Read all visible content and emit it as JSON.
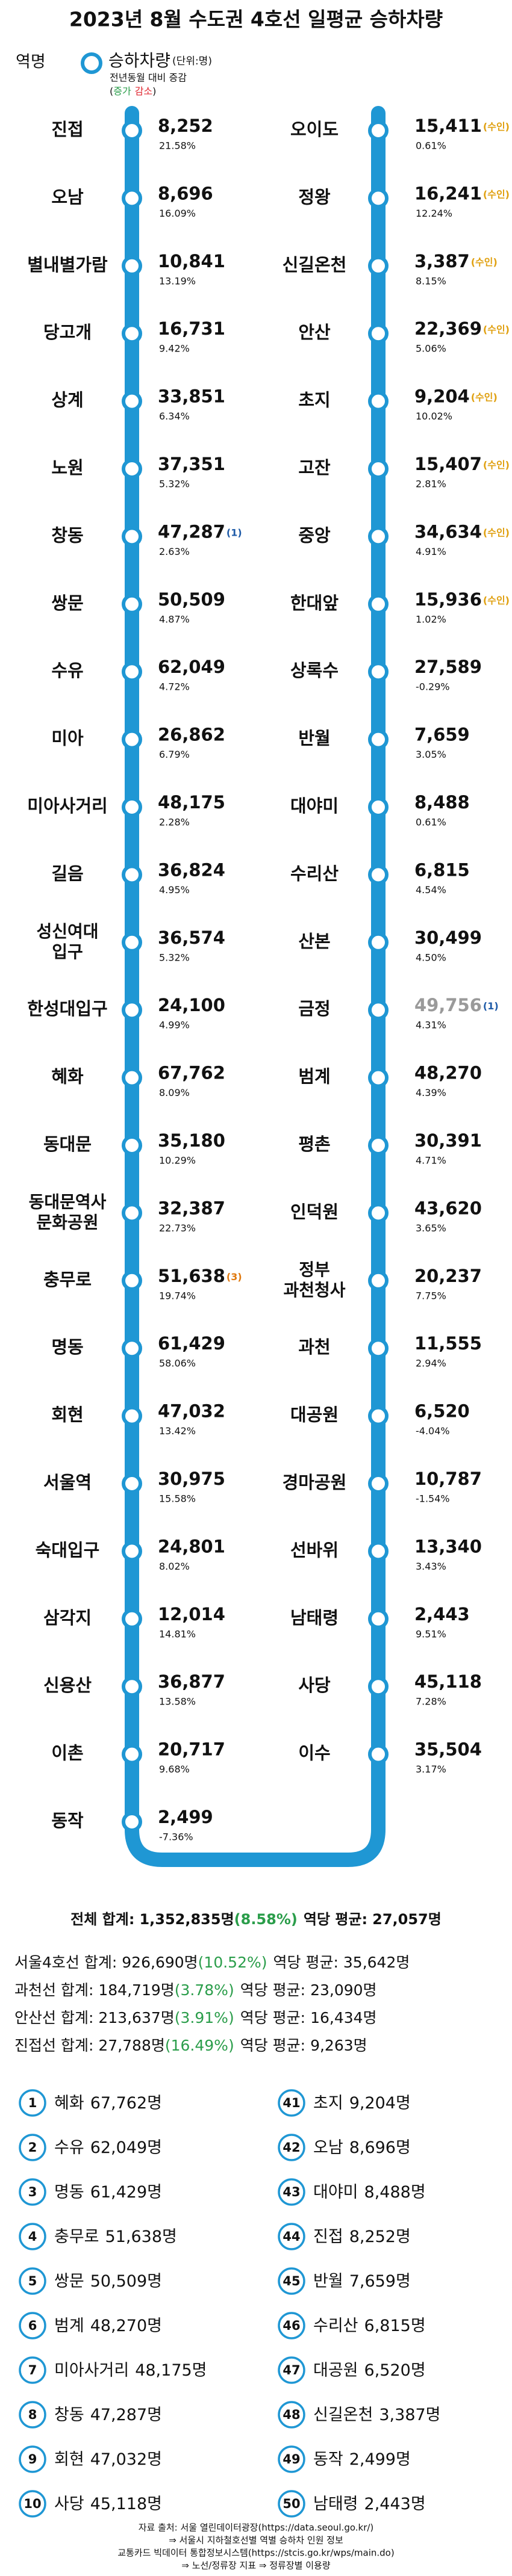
{
  "title": "2023년 8월 수도권 4호선 일평균 승하차량",
  "legend": {
    "station": "역명",
    "riders": "승하차량",
    "unit": "(단위:명)",
    "change": "전년동월 대비 증감",
    "key_open": "(",
    "increase": "증가",
    "decrease": "감소",
    "key_close": ")"
  },
  "colors": {
    "line": "#1f97d4",
    "increase": "#2a9d4a",
    "decrease": "#e0262f",
    "muted": "#9a9a9a"
  },
  "left_stations": [
    {
      "name": "진접",
      "riders": "8,252",
      "change": "21.58%"
    },
    {
      "name": "오남",
      "riders": "8,696",
      "change": "16.09%"
    },
    {
      "name": "별내별가람",
      "riders": "10,841",
      "change": "13.19%"
    },
    {
      "name": "당고개",
      "riders": "16,731",
      "change": "9.42%"
    },
    {
      "name": "상계",
      "riders": "33,851",
      "change": "6.34%"
    },
    {
      "name": "노원",
      "riders": "37,351",
      "change": "5.32%"
    },
    {
      "name": "창동",
      "riders": "47,287",
      "note": "(1)",
      "note_color": "#1f5ba8",
      "change": "2.63%"
    },
    {
      "name": "쌍문",
      "riders": "50,509",
      "change": "4.87%"
    },
    {
      "name": "수유",
      "riders": "62,049",
      "change": "4.72%"
    },
    {
      "name": "미아",
      "riders": "26,862",
      "change": "6.79%"
    },
    {
      "name": "미아사거리",
      "riders": "48,175",
      "change": "2.28%"
    },
    {
      "name": "길음",
      "riders": "36,824",
      "change": "4.95%"
    },
    {
      "name": [
        "성신여대",
        "입구"
      ],
      "riders": "36,574",
      "change": "5.32%"
    },
    {
      "name": "한성대입구",
      "riders": "24,100",
      "change": "4.99%"
    },
    {
      "name": "혜화",
      "riders": "67,762",
      "change": "8.09%"
    },
    {
      "name": "동대문",
      "riders": "35,180",
      "change": "10.29%"
    },
    {
      "name": [
        "동대문역사",
        "문화공원"
      ],
      "riders": "32,387",
      "change": "22.73%"
    },
    {
      "name": "충무로",
      "riders": "51,638",
      "note": "(3)",
      "note_color": "#e07a10",
      "change": "19.74%"
    },
    {
      "name": "명동",
      "riders": "61,429",
      "change": "58.06%"
    },
    {
      "name": "회현",
      "riders": "47,032",
      "change": "13.42%"
    },
    {
      "name": "서울역",
      "riders": "30,975",
      "change": "15.58%"
    },
    {
      "name": "숙대입구",
      "riders": "24,801",
      "change": "8.02%"
    },
    {
      "name": "삼각지",
      "riders": "12,014",
      "change": "14.81%"
    },
    {
      "name": "신용산",
      "riders": "36,877",
      "change": "13.58%"
    },
    {
      "name": "이촌",
      "riders": "20,717",
      "change": "9.68%"
    },
    {
      "name": "동작",
      "riders": "2,499",
      "change": "-7.36%"
    }
  ],
  "right_stations": [
    {
      "name": "오이도",
      "riders": "15,411",
      "note": "(수인)",
      "note_color": "#e0a010",
      "change": "0.61%"
    },
    {
      "name": "정왕",
      "riders": "16,241",
      "note": "(수인)",
      "note_color": "#e0a010",
      "change": "12.24%"
    },
    {
      "name": "신길온천",
      "riders": "3,387",
      "note": "(수인)",
      "note_color": "#e0a010",
      "change": "8.15%"
    },
    {
      "name": "안산",
      "riders": "22,369",
      "note": "(수인)",
      "note_color": "#e0a010",
      "change": "5.06%"
    },
    {
      "name": "초지",
      "riders": "9,204",
      "note": "(수인)",
      "note_color": "#e0a010",
      "change": "10.02%"
    },
    {
      "name": "고잔",
      "riders": "15,407",
      "note": "(수인)",
      "note_color": "#e0a010",
      "change": "2.81%"
    },
    {
      "name": "중앙",
      "riders": "34,634",
      "note": "(수인)",
      "note_color": "#e0a010",
      "change": "4.91%"
    },
    {
      "name": "한대앞",
      "riders": "15,936",
      "note": "(수인)",
      "note_color": "#e0a010",
      "change": "1.02%"
    },
    {
      "name": "상록수",
      "riders": "27,589",
      "change": "-0.29%"
    },
    {
      "name": "반월",
      "riders": "7,659",
      "change": "3.05%"
    },
    {
      "name": "대야미",
      "riders": "8,488",
      "change": "0.61%"
    },
    {
      "name": "수리산",
      "riders": "6,815",
      "change": "4.54%"
    },
    {
      "name": "산본",
      "riders": "30,499",
      "change": "4.50%"
    },
    {
      "name": "금정",
      "riders": "49,756",
      "note": "(1)",
      "note_color": "#1f5ba8",
      "change": "4.31%",
      "muted": true
    },
    {
      "name": "범계",
      "riders": "48,270",
      "change": "4.39%"
    },
    {
      "name": "평촌",
      "riders": "30,391",
      "change": "4.71%"
    },
    {
      "name": "인덕원",
      "riders": "43,620",
      "change": "3.65%"
    },
    {
      "name": [
        "정부",
        "과천청사"
      ],
      "riders": "20,237",
      "change": "7.75%"
    },
    {
      "name": "과천",
      "riders": "11,555",
      "change": "2.94%"
    },
    {
      "name": "대공원",
      "riders": "6,520",
      "change": "-4.04%"
    },
    {
      "name": "경마공원",
      "riders": "10,787",
      "change": "-1.54%"
    },
    {
      "name": "선바위",
      "riders": "13,340",
      "change": "3.43%"
    },
    {
      "name": "남태령",
      "riders": "2,443",
      "change": "9.51%"
    },
    {
      "name": "사당",
      "riders": "45,118",
      "change": "7.28%"
    },
    {
      "name": "이수",
      "riders": "35,504",
      "change": "3.17%"
    }
  ],
  "summary": {
    "total": {
      "label": "전체 합계:",
      "sum": "1,352,835명",
      "change": "(8.58%)",
      "avg_label": "역당 평균:",
      "avg": "27,057명"
    },
    "lines": [
      {
        "label": "서울4호선 합계:",
        "sum": "926,690명",
        "change": "(10.52%)",
        "avg_label": "역당 평균:",
        "avg": "35,642명"
      },
      {
        "label": "과천선 합계:",
        "sum": "184,719명",
        "change": "(3.78%)",
        "avg_label": "역당 평균:",
        "avg": "23,090명"
      },
      {
        "label": "안산선 합계:",
        "sum": "213,637명",
        "change": "(3.91%)",
        "avg_label": "역당 평균:",
        "avg": "16,434명"
      },
      {
        "label": "진접선 합계:",
        "sum": "27,788명",
        "change": "(16.49%)",
        "avg_label": "역당 평균:",
        "avg": "9,263명"
      }
    ]
  },
  "ranking": [
    {
      "rank": 1,
      "station": "혜화",
      "riders": "67,762명"
    },
    {
      "rank": 2,
      "station": "수유",
      "riders": "62,049명"
    },
    {
      "rank": 3,
      "station": "명동",
      "riders": "61,429명"
    },
    {
      "rank": 4,
      "station": "충무로",
      "riders": "51,638명"
    },
    {
      "rank": 5,
      "station": "쌍문",
      "riders": "50,509명"
    },
    {
      "rank": 6,
      "station": "범계",
      "riders": "48,270명"
    },
    {
      "rank": 7,
      "station": "미아사거리",
      "riders": "48,175명"
    },
    {
      "rank": 8,
      "station": "창동",
      "riders": "47,287명"
    },
    {
      "rank": 9,
      "station": "회현",
      "riders": "47,032명"
    },
    {
      "rank": 10,
      "station": "사당",
      "riders": "45,118명"
    },
    {
      "rank": 41,
      "station": "초지",
      "riders": "9,204명"
    },
    {
      "rank": 42,
      "station": "오남",
      "riders": "8,696명"
    },
    {
      "rank": 43,
      "station": "대야미",
      "riders": "8,488명"
    },
    {
      "rank": 44,
      "station": "진접",
      "riders": "8,252명"
    },
    {
      "rank": 45,
      "station": "반월",
      "riders": "7,659명"
    },
    {
      "rank": 46,
      "station": "수리산",
      "riders": "6,815명"
    },
    {
      "rank": 47,
      "station": "대공원",
      "riders": "6,520명"
    },
    {
      "rank": 48,
      "station": "신길온천",
      "riders": "3,387명"
    },
    {
      "rank": 49,
      "station": "동작",
      "riders": "2,499명"
    },
    {
      "rank": 50,
      "station": "남태령",
      "riders": "2,443명"
    }
  ],
  "sources": [
    "자료 출처: 서울 열린데이터광장(https://data.seoul.go.kr/)",
    "⇒ 서울시 지하철호선별 역별 승하차 인원 정보",
    "교통카드 빅데이터 통합정보시스템(https://stcis.go.kr/wps/main.do)",
    "⇒ 노선/정류장 지표 ⇒ 정류장별 이용량"
  ]
}
